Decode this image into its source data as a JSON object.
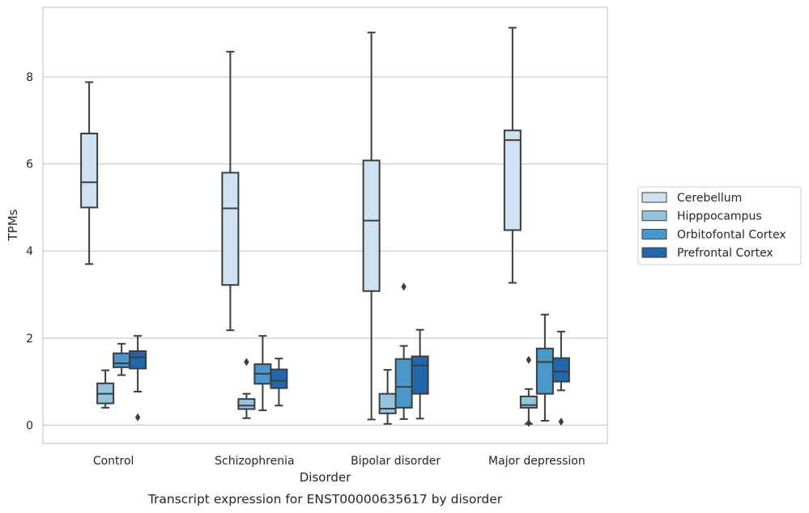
{
  "chart_data": {
    "type": "box",
    "caption": "Transcript expression for ENST00000635617 by disorder",
    "xlabel": "Disorder",
    "ylabel": "TPMs",
    "ylim": [
      -0.42,
      9.6
    ],
    "yticks": [
      0,
      2,
      4,
      6,
      8
    ],
    "grid": "horizontal",
    "legend_position": "right",
    "categories": [
      "Control",
      "Schizophrenia",
      "Bipolar disorder",
      "Major depression"
    ],
    "series": [
      {
        "name": "Cerebellum",
        "color": "#d0e1f2",
        "boxes": [
          {
            "whislo": 3.7,
            "q1": 5.0,
            "med": 5.58,
            "q3": 6.7,
            "whishi": 7.88,
            "fliers": []
          },
          {
            "whislo": 2.18,
            "q1": 3.22,
            "med": 4.98,
            "q3": 5.8,
            "whishi": 8.58,
            "fliers": []
          },
          {
            "whislo": 0.13,
            "q1": 3.08,
            "med": 4.7,
            "q3": 6.08,
            "whishi": 9.02,
            "fliers": []
          },
          {
            "whislo": 3.27,
            "q1": 4.48,
            "med": 6.55,
            "q3": 6.77,
            "whishi": 9.13,
            "fliers": []
          }
        ]
      },
      {
        "name": "Hipppocampus",
        "color": "#94c4df",
        "boxes": [
          {
            "whislo": 0.4,
            "q1": 0.5,
            "med": 0.72,
            "q3": 0.96,
            "whishi": 1.26,
            "fliers": []
          },
          {
            "whislo": 0.16,
            "q1": 0.37,
            "med": 0.45,
            "q3": 0.6,
            "whishi": 0.72,
            "fliers": [
              1.45
            ]
          },
          {
            "whislo": 0.03,
            "q1": 0.27,
            "med": 0.38,
            "q3": 0.72,
            "whishi": 1.27,
            "fliers": []
          },
          {
            "whislo": 0.03,
            "q1": 0.4,
            "med": 0.46,
            "q3": 0.66,
            "whishi": 0.83,
            "fliers": [
              1.5,
              0.05
            ]
          }
        ]
      },
      {
        "name": "Orbitofontal Cortex",
        "color": "#4a98c9",
        "boxes": [
          {
            "whislo": 1.15,
            "q1": 1.33,
            "med": 1.42,
            "q3": 1.65,
            "whishi": 1.87,
            "fliers": []
          },
          {
            "whislo": 0.34,
            "q1": 0.95,
            "med": 1.18,
            "q3": 1.4,
            "whishi": 2.05,
            "fliers": []
          },
          {
            "whislo": 0.14,
            "q1": 0.4,
            "med": 0.88,
            "q3": 1.52,
            "whishi": 1.82,
            "fliers": [
              3.18
            ]
          },
          {
            "whislo": 0.1,
            "q1": 0.72,
            "med": 1.45,
            "q3": 1.76,
            "whishi": 2.54,
            "fliers": []
          }
        ]
      },
      {
        "name": "Prefrontal Cortex",
        "color": "#2266ac",
        "boxes": [
          {
            "whislo": 0.77,
            "q1": 1.3,
            "med": 1.56,
            "q3": 1.7,
            "whishi": 2.05,
            "fliers": [
              0.18
            ]
          },
          {
            "whislo": 0.45,
            "q1": 0.85,
            "med": 1.02,
            "q3": 1.28,
            "whishi": 1.53,
            "fliers": []
          },
          {
            "whislo": 0.15,
            "q1": 0.72,
            "med": 1.37,
            "q3": 1.58,
            "whishi": 2.19,
            "fliers": []
          },
          {
            "whislo": 0.8,
            "q1": 1.0,
            "med": 1.23,
            "q3": 1.54,
            "whishi": 2.15,
            "fliers": [
              0.08
            ]
          }
        ]
      }
    ]
  }
}
